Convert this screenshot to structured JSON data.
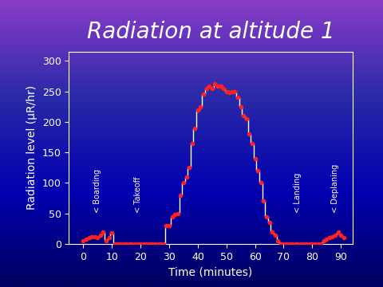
{
  "chart_data": {
    "type": "step",
    "title": "Radiation at altitude 1",
    "x_label": "Time (minutes)",
    "y_label": "Radiation level (μR/hr)",
    "x": [
      0,
      1,
      2,
      3,
      4,
      5,
      6,
      7,
      8,
      9,
      10,
      11,
      12,
      13,
      14,
      15,
      16,
      17,
      18,
      19,
      20,
      21,
      22,
      23,
      24,
      25,
      26,
      27,
      28,
      29,
      30,
      31,
      32,
      33,
      34,
      35,
      36,
      37,
      38,
      39,
      40,
      41,
      42,
      43,
      44,
      45,
      46,
      47,
      48,
      49,
      50,
      51,
      52,
      53,
      54,
      55,
      56,
      57,
      58,
      59,
      60,
      61,
      62,
      63,
      64,
      65,
      66,
      67,
      68,
      69,
      70,
      71,
      72,
      73,
      74,
      75,
      76,
      77,
      78,
      79,
      80,
      81,
      82,
      83,
      84,
      85,
      86,
      87,
      88,
      89,
      90,
      91
    ],
    "values": [
      5,
      8,
      10,
      12,
      12,
      10,
      15,
      20,
      5,
      10,
      18,
      0,
      0,
      0,
      0,
      0,
      0,
      0,
      0,
      0,
      0,
      0,
      0,
      0,
      0,
      0,
      0,
      0,
      0,
      30,
      30,
      45,
      48,
      50,
      80,
      100,
      110,
      125,
      165,
      190,
      220,
      225,
      245,
      255,
      258,
      255,
      262,
      258,
      258,
      255,
      250,
      248,
      250,
      250,
      240,
      225,
      210,
      205,
      180,
      165,
      140,
      120,
      100,
      70,
      45,
      35,
      20,
      15,
      5,
      0,
      0,
      0,
      0,
      0,
      0,
      0,
      0,
      0,
      0,
      0,
      0,
      0,
      0,
      0,
      5,
      8,
      10,
      12,
      15,
      20,
      15,
      10
    ],
    "color": "#ff2020",
    "marker": "o",
    "xlim": [
      -5,
      94
    ],
    "xticks": [
      0,
      10,
      20,
      30,
      40,
      50,
      60,
      70,
      80,
      90
    ],
    "ylim": [
      0,
      315
    ],
    "yticks": [
      0,
      50,
      100,
      150,
      200,
      250,
      300
    ],
    "grid": false,
    "annotations": [
      {
        "text": "< Boarding",
        "x": 5
      },
      {
        "text": "< Takeoff",
        "x": 19
      },
      {
        "text": "< Landing",
        "x": 75
      },
      {
        "text": "< Deplaning",
        "x": 88
      }
    ]
  }
}
